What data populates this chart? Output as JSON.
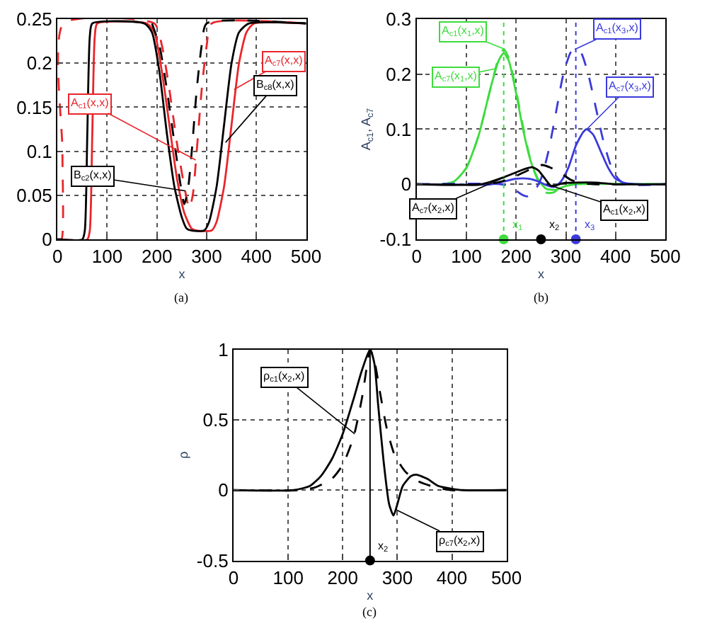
{
  "chart_data": [
    {
      "type": "line",
      "xlabel": "x",
      "xlim": [
        0,
        500
      ],
      "xticks": [
        0,
        100,
        200,
        300,
        400,
        500
      ],
      "ylim": [
        0,
        0.25
      ],
      "yticks": [
        0,
        0.05,
        0.1,
        0.15,
        0.2,
        0.25
      ],
      "grid": true,
      "marker": "none",
      "series": [
        {
          "color": "#e8262b",
          "line_style": "solid",
          "x": [
            0,
            60,
            65,
            70,
            75,
            80,
            180,
            195,
            210,
            225,
            240,
            255,
            270,
            280,
            310,
            320,
            335,
            350,
            365,
            380,
            395,
            500
          ],
          "values": [
            0,
            0,
            0.01,
            0.12,
            0.23,
            0.245,
            0.245,
            0.235,
            0.19,
            0.13,
            0.07,
            0.03,
            0.012,
            0.01,
            0.01,
            0.02,
            0.06,
            0.13,
            0.2,
            0.235,
            0.245,
            0.245
          ]
        },
        {
          "color": "#e8262b",
          "line_style": "dashed",
          "x": [
            0,
            8,
            10,
            12,
            195,
            210,
            225,
            240,
            255,
            265,
            272,
            280,
            290,
            300,
            310,
            500
          ],
          "values": [
            0,
            0,
            0.1,
            0.245,
            0.245,
            0.22,
            0.17,
            0.11,
            0.06,
            0.035,
            0.05,
            0.1,
            0.17,
            0.22,
            0.245,
            0.245
          ]
        },
        {
          "color": "#000000",
          "line_style": "solid",
          "x": [
            0,
            50,
            55,
            60,
            65,
            70,
            175,
            190,
            205,
            220,
            235,
            250,
            260,
            270,
            295,
            305,
            320,
            335,
            350,
            365,
            385,
            500
          ],
          "values": [
            0,
            0,
            0.01,
            0.12,
            0.23,
            0.245,
            0.245,
            0.235,
            0.19,
            0.12,
            0.06,
            0.025,
            0.012,
            0.01,
            0.01,
            0.02,
            0.06,
            0.13,
            0.2,
            0.235,
            0.245,
            0.245
          ]
        },
        {
          "color": "#000000",
          "line_style": "dashed",
          "x": [
            190,
            205,
            220,
            235,
            248,
            255,
            262,
            270,
            280,
            290,
            300,
            500
          ],
          "values": [
            0.245,
            0.22,
            0.17,
            0.11,
            0.06,
            0.04,
            0.055,
            0.1,
            0.17,
            0.22,
            0.245,
            0.245
          ]
        }
      ],
      "annotations": [
        {
          "text": "A$_{c7}$(x,x)",
          "x": 355,
          "y": 0.17
        },
        {
          "text": "A$_{c1}$(x,x)",
          "x": 278,
          "y": 0.09
        },
        {
          "text": "B$_{c8}$(x,x)",
          "x": 338,
          "y": 0.11
        },
        {
          "text": "B$_{c2}$(x,x)",
          "x": 257,
          "y": 0.055
        },
        "(a)"
      ]
    },
    {
      "type": "line",
      "xlabel": "x",
      "ylabel": "A$_{c1}$, A$_{c7}$",
      "xlim": [
        0,
        500
      ],
      "xticks": [
        0,
        100,
        200,
        300,
        400,
        500
      ],
      "ylim": [
        -0.1,
        0.3
      ],
      "yticks": [
        -0.1,
        0,
        0.1,
        0.2,
        0.3
      ],
      "grid": true,
      "marker": "none",
      "series": [
        {
          "color": "#3ddc3d",
          "line_style": "dashed",
          "x": [
            0,
            50,
            75,
            100,
            125,
            150,
            165,
            175,
            185,
            200,
            215,
            230,
            245,
            260,
            275,
            290,
            310,
            500
          ],
          "values": [
            0,
            0,
            0.005,
            0.03,
            0.09,
            0.18,
            0.23,
            0.245,
            0.23,
            0.17,
            0.1,
            0.04,
            0.005,
            -0.015,
            -0.015,
            -0.005,
            0,
            0
          ]
        },
        {
          "color": "#3ddc3d",
          "line_style": "solid",
          "x": [
            0,
            50,
            75,
            100,
            125,
            150,
            165,
            175,
            185,
            200,
            215,
            230,
            245,
            260,
            280,
            300,
            320,
            500
          ],
          "values": [
            0,
            0,
            0.005,
            0.03,
            0.09,
            0.18,
            0.225,
            0.238,
            0.225,
            0.165,
            0.095,
            0.04,
            0.008,
            -0.008,
            -0.01,
            -0.003,
            0,
            0
          ]
        },
        {
          "color": "#3a3adc",
          "line_style": "dashed",
          "x": [
            0,
            170,
            190,
            210,
            222,
            235,
            250,
            265,
            280,
            295,
            310,
            320,
            330,
            345,
            360,
            375,
            390,
            405,
            420,
            500
          ],
          "values": [
            0,
            0,
            -0.005,
            -0.018,
            -0.022,
            -0.015,
            0.01,
            0.06,
            0.13,
            0.2,
            0.24,
            0.245,
            0.24,
            0.2,
            0.14,
            0.08,
            0.035,
            0.01,
            0,
            0
          ]
        },
        {
          "color": "#3a3adc",
          "line_style": "solid",
          "x": [
            0,
            150,
            175,
            200,
            225,
            245,
            262,
            275,
            290,
            305,
            320,
            335,
            342,
            355,
            370,
            385,
            400,
            420,
            450,
            500
          ],
          "values": [
            0,
            0,
            0.005,
            0.01,
            0.01,
            0.005,
            -0.002,
            -0.005,
            0.005,
            0.03,
            0.07,
            0.095,
            0.1,
            0.09,
            0.06,
            0.03,
            0.01,
            0.002,
            0,
            0
          ]
        },
        {
          "color": "#000000",
          "line_style": "solid",
          "x": [
            0,
            130,
            160,
            190,
            215,
            232,
            245,
            258,
            270,
            280,
            295,
            320,
            360,
            400,
            500
          ],
          "values": [
            0,
            0,
            0.008,
            0.018,
            0.027,
            0.031,
            0.025,
            0.01,
            -0.003,
            -0.002,
            0.002,
            0.003,
            0.003,
            0,
            0
          ]
        },
        {
          "color": "#000000",
          "line_style": "dashed",
          "x": [
            0,
            140,
            170,
            200,
            230,
            252,
            270,
            290,
            310,
            330,
            360,
            500
          ],
          "values": [
            0,
            0,
            0.005,
            0.015,
            0.028,
            0.035,
            0.03,
            0.02,
            0.008,
            0.002,
            0,
            0
          ]
        },
        {
          "type": "scatter",
          "marker": "circle",
          "colors": [
            "#3ddc3d",
            "#000000",
            "#3a3adc"
          ],
          "x": [
            175,
            250,
            320
          ],
          "values": [
            -0.1,
            -0.1,
            -0.1
          ]
        }
      ],
      "ref_lines": [
        {
          "axis": "x",
          "value": 175,
          "color": "#3ddc3d",
          "line_style": "dotted"
        },
        {
          "axis": "x",
          "value": 320,
          "color": "#3a3adc",
          "line_style": "dotted"
        }
      ],
      "annotations": [
        {
          "text": "A$_{c1}$(x$_{1}$,x)",
          "x": 178,
          "y": 0.245
        },
        {
          "text": "A$_{c7}$(x$_{1}$,x)",
          "x": 158,
          "y": 0.21
        },
        {
          "text": "A$_{c1}$(x$_{3}$,x)",
          "x": 318,
          "y": 0.245
        },
        {
          "text": "A$_{c7}$(x$_{3}$,x)",
          "x": 342,
          "y": 0.1
        },
        {
          "text": "A$_{c7}$(x$_{2}$,x)",
          "x": 190,
          "y": 0.018
        },
        {
          "text": "A$_{c1}$(x$_{2}$,x)",
          "x": 262,
          "y": 0.0
        },
        {
          "text": "x$_{1}$",
          "x": 175,
          "y": -0.1
        },
        {
          "text": "x$_{2}$",
          "x": 250,
          "y": -0.1
        },
        {
          "text": "x$_{3}$",
          "x": 320,
          "y": -0.1
        },
        "(b)"
      ]
    },
    {
      "type": "line",
      "xlabel": "x",
      "ylabel": "ρ",
      "xlim": [
        0,
        500
      ],
      "xticks": [
        0,
        100,
        200,
        300,
        400,
        500
      ],
      "ylim": [
        -0.5,
        1
      ],
      "yticks": [
        -0.5,
        0,
        0.5,
        1
      ],
      "grid": true,
      "marker": "none",
      "series": [
        {
          "color": "#000000",
          "line_style": "dashed",
          "x": [
            0,
            120,
            150,
            180,
            200,
            220,
            235,
            245,
            250,
            258,
            268,
            280,
            295,
            315,
            340,
            370,
            400,
            500
          ],
          "values": [
            0,
            0,
            0.02,
            0.08,
            0.18,
            0.38,
            0.65,
            0.9,
            1,
            0.92,
            0.7,
            0.45,
            0.25,
            0.13,
            0.06,
            0.02,
            0,
            0
          ]
        },
        {
          "color": "#000000",
          "line_style": "solid",
          "x": [
            0,
            110,
            140,
            160,
            180,
            200,
            220,
            235,
            250,
            258,
            265,
            275,
            285,
            293,
            300,
            310,
            325,
            335,
            355,
            375,
            400,
            420,
            500
          ],
          "values": [
            0,
            0,
            0.03,
            0.1,
            0.22,
            0.4,
            0.65,
            0.85,
            1,
            0.9,
            0.6,
            0.2,
            -0.1,
            -0.18,
            -0.1,
            0.03,
            0.1,
            0.11,
            0.08,
            0.03,
            0.01,
            0,
            0
          ]
        },
        {
          "type": "scatter",
          "marker": "circle",
          "colors": [
            "#000000"
          ],
          "x": [
            250
          ],
          "values": [
            -0.5
          ]
        }
      ],
      "ref_lines": [
        {
          "axis": "x",
          "value": 250,
          "color": "#000000",
          "line_style": "solid"
        }
      ],
      "annotations": [
        {
          "text": "ρ$_{c1}$(x$_{2}$,x)",
          "x": 222,
          "y": 0.4
        },
        {
          "text": "ρ$_{c7}$(x$_{2}$,x)",
          "x": 298,
          "y": -0.14
        },
        {
          "text": "x$_{2}$",
          "x": 250,
          "y": -0.5
        },
        "(c)"
      ]
    }
  ]
}
